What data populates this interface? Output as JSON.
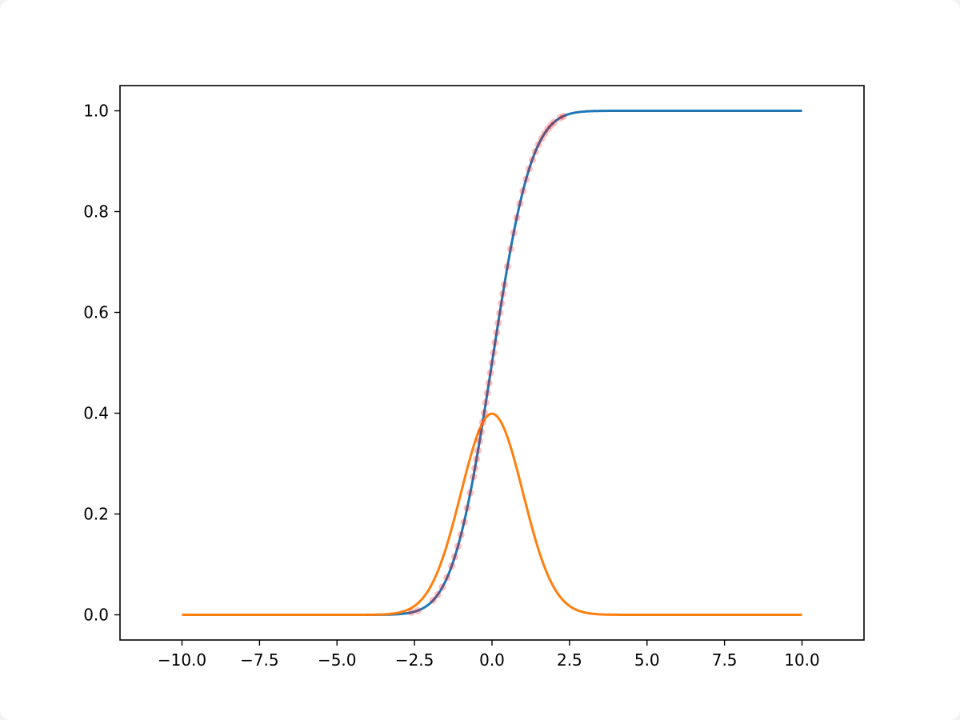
{
  "chart_data": {
    "type": "line",
    "title": "",
    "xlabel": "",
    "ylabel": "",
    "xlim": [
      -12.0,
      12.0
    ],
    "ylim": [
      -0.05,
      1.05
    ],
    "grid": false,
    "legend": "none",
    "xticks": [
      -10.0,
      -7.5,
      -5.0,
      -2.5,
      0.0,
      2.5,
      5.0,
      7.5,
      10.0
    ],
    "xtick_labels": [
      "−10.0",
      "−7.5",
      "−5.0",
      "−2.5",
      "0.0",
      "2.5",
      "5.0",
      "7.5",
      "10.0"
    ],
    "yticks": [
      0.0,
      0.2,
      0.4,
      0.6,
      0.8,
      1.0
    ],
    "ytick_labels": [
      "0.0",
      "0.2",
      "0.4",
      "0.6",
      "0.8",
      "1.0"
    ],
    "series": [
      {
        "type": "line",
        "color": "#1f77b4",
        "x": [
          -10,
          -9,
          -8,
          -7,
          -6,
          -5,
          -4.5,
          -4,
          -3.5,
          -3,
          -2.5,
          -2,
          -1.5,
          -1,
          -0.5,
          0,
          0.5,
          1,
          1.5,
          2,
          2.5,
          3,
          3.5,
          4,
          4.5,
          5,
          6,
          7,
          8,
          9,
          10
        ],
        "y": [
          0.0,
          0.0,
          0.0,
          0.0,
          0.0,
          0.0,
          0.0,
          0.0,
          0.0,
          0.001,
          0.006,
          0.023,
          0.067,
          0.159,
          0.309,
          0.5,
          0.691,
          0.841,
          0.933,
          0.977,
          0.994,
          0.999,
          1.0,
          1.0,
          1.0,
          1.0,
          1.0,
          1.0,
          1.0,
          1.0,
          1.0
        ]
      },
      {
        "type": "line",
        "color": "#ff7f0e",
        "x": [
          -10,
          -8,
          -6,
          -5,
          -4,
          -3.5,
          -3,
          -2.5,
          -2,
          -1.5,
          -1,
          -0.5,
          0,
          0.5,
          1,
          1.5,
          2,
          2.5,
          3,
          3.5,
          4,
          5,
          6,
          8,
          10
        ],
        "y": [
          0.0,
          0.0,
          0.0,
          0.0,
          0.0,
          0.001,
          0.004,
          0.018,
          0.054,
          0.13,
          0.242,
          0.352,
          0.399,
          0.352,
          0.242,
          0.13,
          0.054,
          0.018,
          0.004,
          0.001,
          0.0,
          0.0,
          0.0,
          0.0,
          0.0
        ]
      },
      {
        "type": "scatter",
        "color": "#ff0000",
        "opacity": 0.25,
        "x": [
          -2.6,
          -2.4,
          -1.9,
          -1.75,
          -1.6,
          -1.45,
          -1.3,
          -1.2,
          -1.1,
          -1.0,
          -0.9,
          -0.8,
          -0.7,
          -0.6,
          -0.55,
          -0.5,
          -0.45,
          -0.4,
          -0.35,
          -0.3,
          -0.25,
          -0.2,
          -0.15,
          -0.1,
          -0.05,
          0.0,
          0.05,
          0.1,
          0.15,
          0.2,
          0.25,
          0.3,
          0.35,
          0.4,
          0.5,
          0.6,
          0.7,
          0.8,
          0.9,
          1.0,
          1.1,
          1.2,
          1.3,
          1.4,
          1.5,
          1.6,
          1.7,
          1.8,
          1.9,
          2.0,
          2.2,
          2.3
        ],
        "y": [
          0.005,
          0.008,
          0.029,
          0.04,
          0.055,
          0.074,
          0.097,
          0.115,
          0.136,
          0.159,
          0.184,
          0.212,
          0.242,
          0.274,
          0.291,
          0.309,
          0.326,
          0.345,
          0.363,
          0.382,
          0.401,
          0.421,
          0.44,
          0.46,
          0.48,
          0.5,
          0.52,
          0.54,
          0.56,
          0.579,
          0.599,
          0.618,
          0.637,
          0.655,
          0.691,
          0.726,
          0.758,
          0.788,
          0.816,
          0.841,
          0.864,
          0.885,
          0.903,
          0.919,
          0.933,
          0.945,
          0.955,
          0.964,
          0.971,
          0.977,
          0.986,
          0.989
        ]
      }
    ]
  }
}
